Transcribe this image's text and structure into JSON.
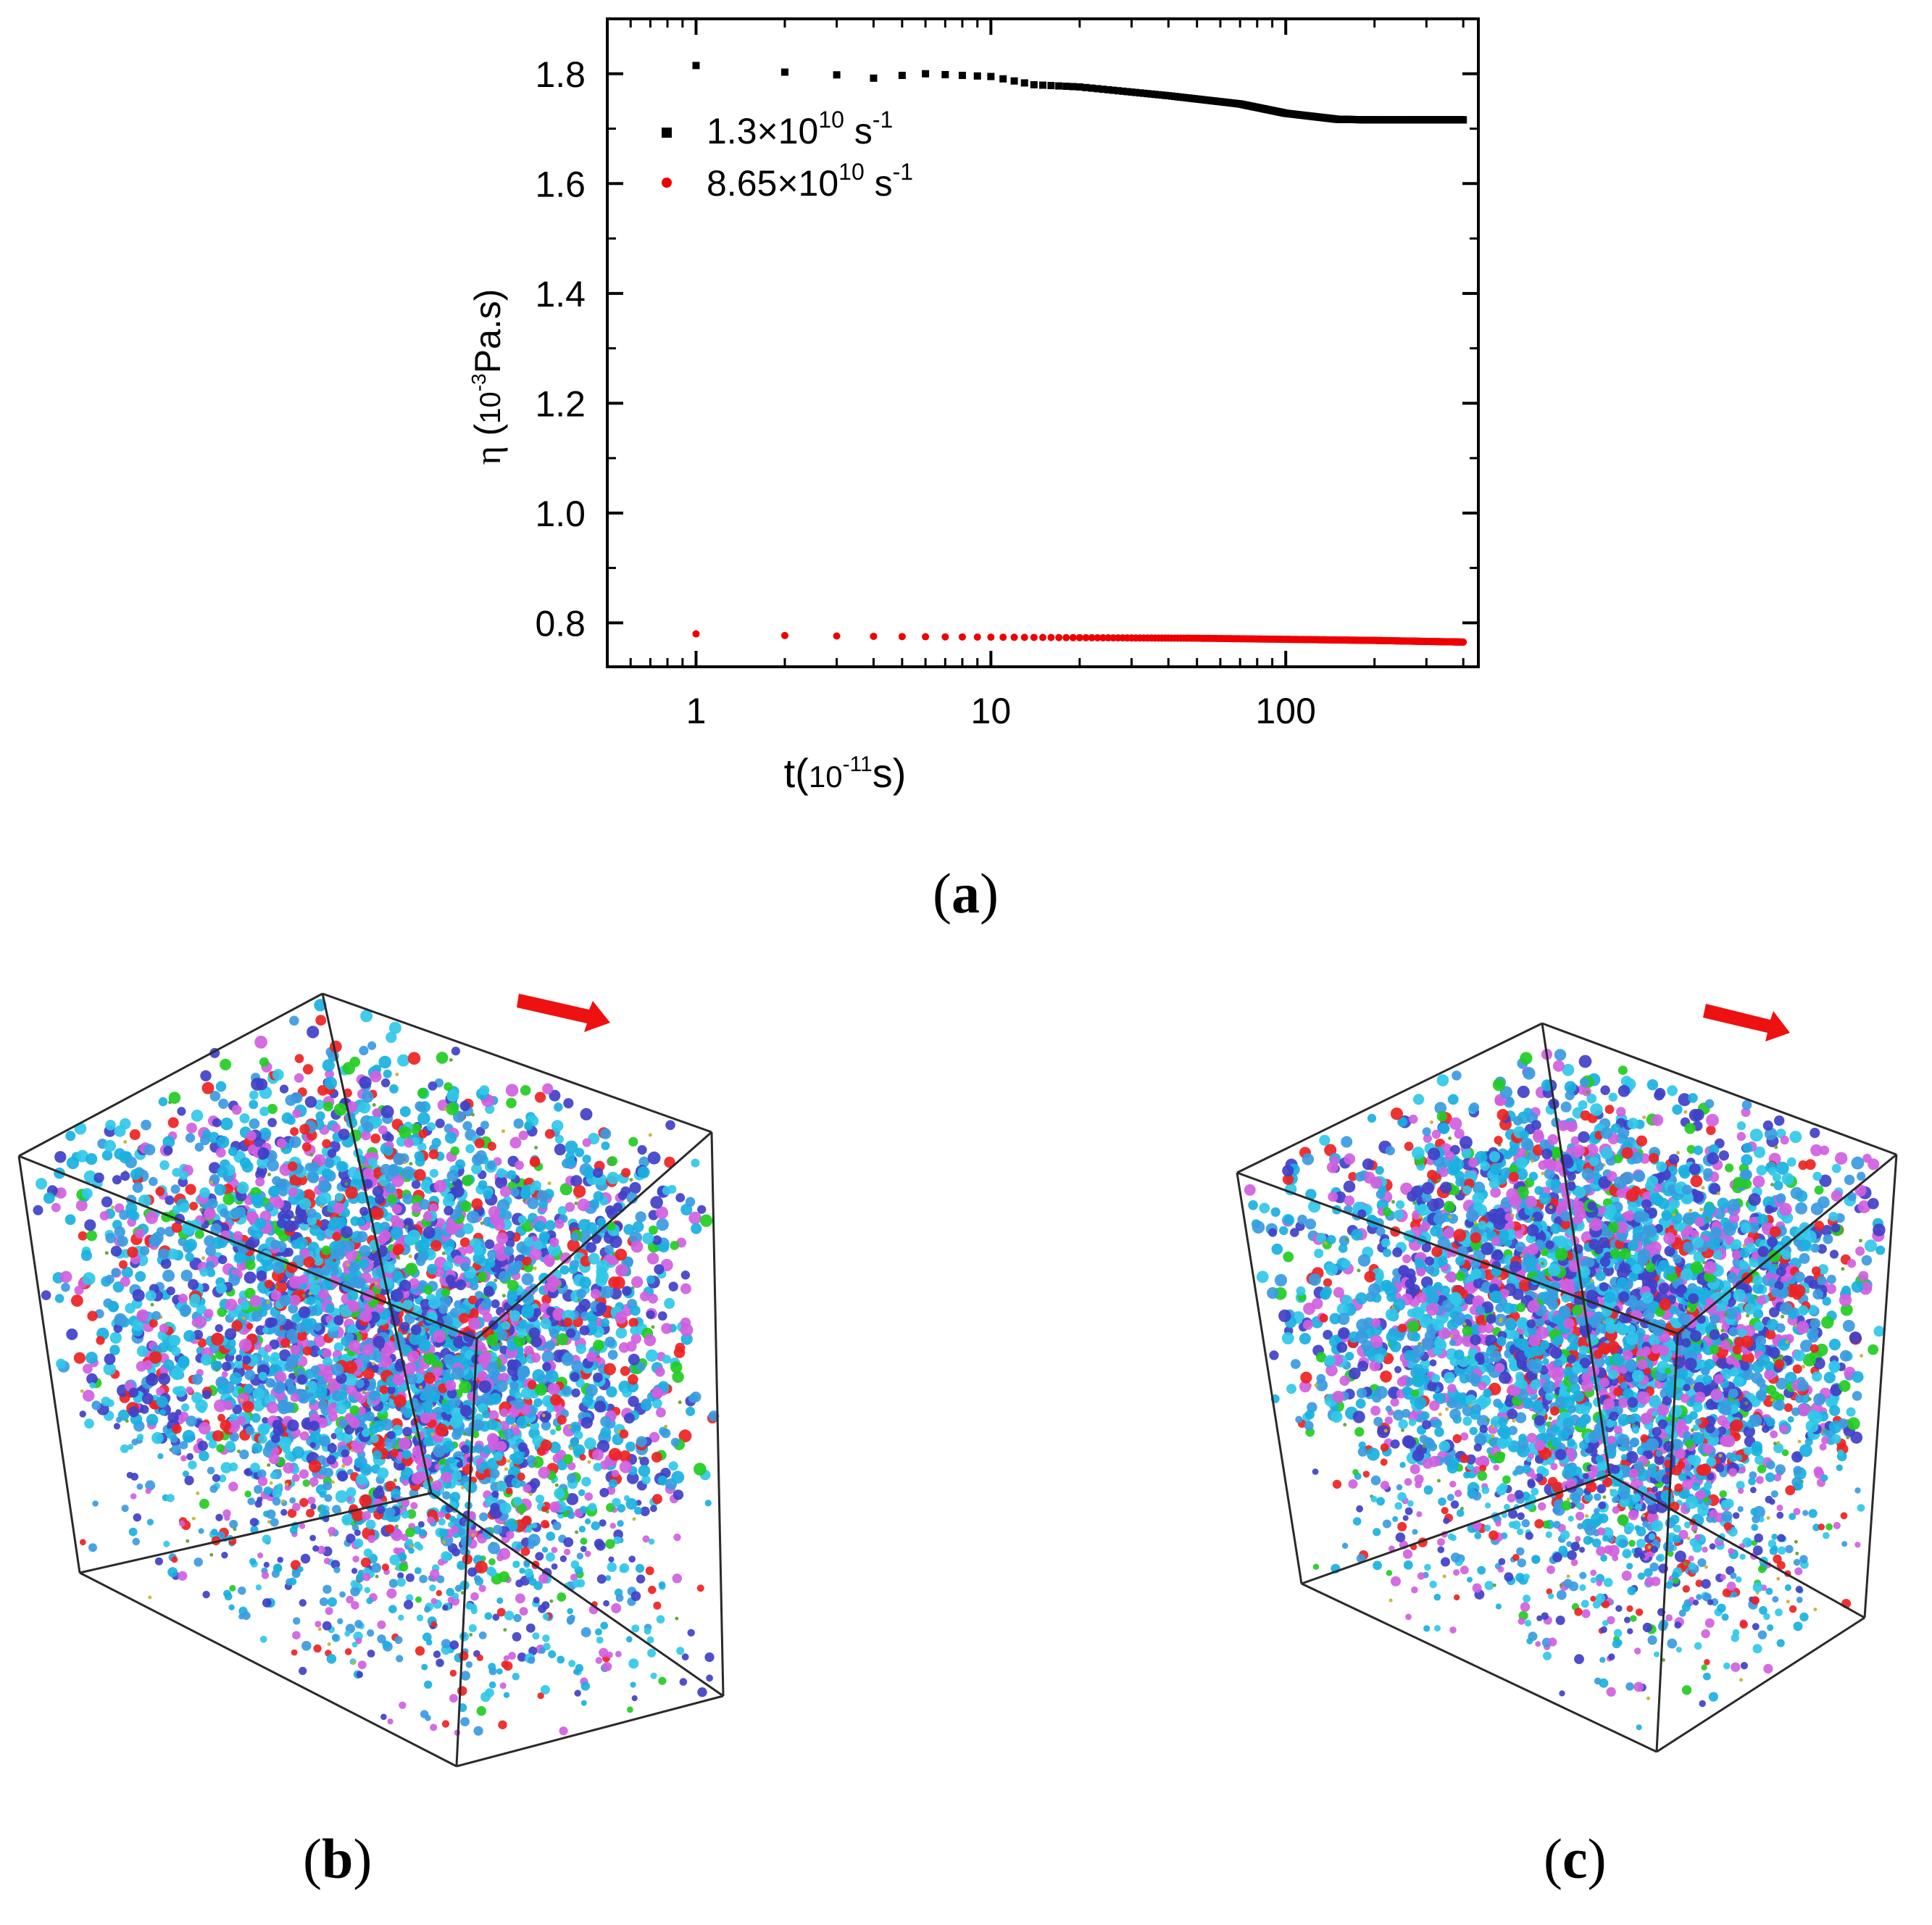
{
  "colors": {
    "series1": "#000000",
    "series2": "#ee0000",
    "arrow": "#ee1111",
    "box": "#2a2a2a",
    "particles": [
      "#1ab0e0",
      "#3a9be0",
      "#4040c8",
      "#30c8e8",
      "#d060e0",
      "#ee2222",
      "#22cc22",
      "#c8b030",
      "#60a030"
    ]
  },
  "panel_labels": {
    "a": "a",
    "b": "b",
    "c": "c"
  },
  "chart_data": {
    "type": "scatter",
    "xscale": "log",
    "xlim": [
      0.5,
      450
    ],
    "ylim": [
      0.72,
      1.9
    ],
    "xticks": [
      1,
      10,
      100
    ],
    "xtick_labels": [
      "1",
      "10",
      "100"
    ],
    "yticks": [
      0.8,
      1.0,
      1.2,
      1.4,
      1.6,
      1.8
    ],
    "ytick_labels": [
      "0.8",
      "1.0",
      "1.2",
      "1.4",
      "1.6",
      "1.8"
    ],
    "xlabel": {
      "prefix": "t(",
      "base": "10",
      "exp": "-11",
      "unit": "s)"
    },
    "ylabel": {
      "symbol": "η",
      "open": " (",
      "base": "10",
      "exp": "-3",
      "unit": "Pa.s)"
    },
    "legend_position": "top-left",
    "series": [
      {
        "name": "1.3×10¹⁰ s⁻¹",
        "legend": {
          "mantissa": "1.3×10",
          "exp": "10",
          "unit": " s",
          "unit_exp": "-1"
        },
        "marker": "square",
        "t_start": 1,
        "t_end": 400,
        "dt": 1,
        "keypoints_t": [
          1,
          2,
          3,
          4,
          5,
          6,
          8,
          10,
          14,
          20,
          40,
          70,
          100,
          150,
          200,
          400
        ],
        "keypoints_eta": [
          1.815,
          1.803,
          1.798,
          1.792,
          1.797,
          1.8,
          1.797,
          1.795,
          1.78,
          1.776,
          1.76,
          1.745,
          1.728,
          1.717,
          1.716,
          1.716
        ]
      },
      {
        "name": "8.65×10¹⁰ s⁻¹",
        "legend": {
          "mantissa": "8.65×10",
          "exp": "10",
          "unit": " s",
          "unit_exp": "-1"
        },
        "marker": "circle",
        "t_start": 1,
        "t_end": 400,
        "dt": 1,
        "keypoints_t": [
          1,
          2,
          5,
          10,
          20,
          50,
          100,
          200,
          400
        ],
        "keypoints_eta": [
          0.78,
          0.777,
          0.775,
          0.774,
          0.773,
          0.772,
          0.77,
          0.768,
          0.765
        ]
      }
    ]
  }
}
